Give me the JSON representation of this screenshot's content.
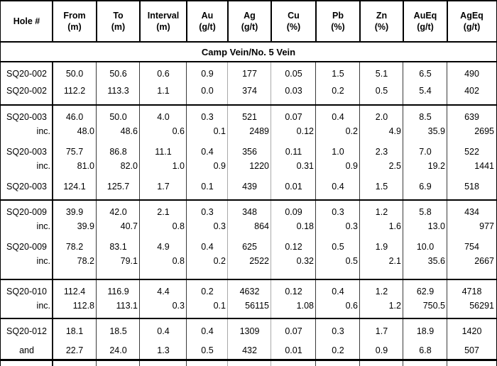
{
  "table": {
    "columns": [
      {
        "label": "Hole #",
        "unit": ""
      },
      {
        "label": "From",
        "unit": "(m)"
      },
      {
        "label": "To",
        "unit": "(m)"
      },
      {
        "label": "Interval",
        "unit": "(m)"
      },
      {
        "label": "Au",
        "unit": "(g/t)"
      },
      {
        "label": "Ag",
        "unit": "(g/t)"
      },
      {
        "label": "Cu",
        "unit": "(%)"
      },
      {
        "label": "Pb",
        "unit": "(%)"
      },
      {
        "label": "Zn",
        "unit": "(%)"
      },
      {
        "label": "AuEq",
        "unit": "(g/t)"
      },
      {
        "label": "AgEq",
        "unit": "(g/t)"
      }
    ],
    "section_title": "Camp Vein/No. 5 Vein",
    "groups": [
      {
        "entries": [
          [
            {
              "kind": "main",
              "cells": [
                "SQ20-002",
                "50.0",
                "50.6",
                "0.6",
                "0.9",
                "177",
                "0.05",
                "1.5",
                "5.1",
                "6.5",
                "490"
              ]
            }
          ],
          [
            {
              "kind": "main",
              "cells": [
                "SQ20-002",
                "112.2",
                "113.3",
                "1.1",
                "0.0",
                "374",
                "0.03",
                "0.2",
                "0.5",
                "5.4",
                "402"
              ]
            }
          ]
        ]
      },
      {
        "entries": [
          [
            {
              "kind": "main",
              "cells": [
                "SQ20-003",
                "46.0",
                "50.0",
                "4.0",
                "0.3",
                "521",
                "0.07",
                "0.4",
                "2.0",
                "8.5",
                "639"
              ]
            },
            {
              "kind": "inc",
              "cells": [
                "inc.",
                "48.0",
                "48.6",
                "0.6",
                "0.1",
                "2489",
                "0.12",
                "0.2",
                "4.9",
                "35.9",
                "2695"
              ]
            }
          ],
          [
            {
              "kind": "main",
              "cells": [
                "SQ20-003",
                "75.7",
                "86.8",
                "11.1",
                "0.4",
                "356",
                "0.11",
                "1.0",
                "2.3",
                "7.0",
                "522"
              ]
            },
            {
              "kind": "inc",
              "cells": [
                "inc.",
                "81.0",
                "82.0",
                "1.0",
                "0.9",
                "1220",
                "0.31",
                "0.9",
                "2.5",
                "19.2",
                "1441"
              ]
            }
          ],
          [
            {
              "kind": "main",
              "cells": [
                "SQ20-003",
                "124.1",
                "125.7",
                "1.7",
                "0.1",
                "439",
                "0.01",
                "0.4",
                "1.5",
                "6.9",
                "518"
              ]
            }
          ]
        ]
      },
      {
        "entries": [
          [
            {
              "kind": "main",
              "cells": [
                "SQ20-009",
                "39.9",
                "42.0",
                "2.1",
                "0.3",
                "348",
                "0.09",
                "0.3",
                "1.2",
                "5.8",
                "434"
              ]
            },
            {
              "kind": "inc",
              "cells": [
                "inc.",
                "39.9",
                "40.7",
                "0.8",
                "0.3",
                "864",
                "0.18",
                "0.3",
                "1.6",
                "13.0",
                "977"
              ]
            }
          ],
          [
            {
              "kind": "main",
              "cells": [
                "SQ20-009",
                "78.2",
                "83.1",
                "4.9",
                "0.4",
                "625",
                "0.12",
                "0.5",
                "1.9",
                "10.0",
                "754"
              ]
            },
            {
              "kind": "inc",
              "cells": [
                "inc.",
                "78.2",
                "79.1",
                "0.8",
                "0.2",
                "2522",
                "0.32",
                "0.5",
                "2.1",
                "35.6",
                "2667"
              ]
            }
          ]
        ]
      },
      {
        "entries": [
          [
            {
              "kind": "main",
              "cells": [
                "SQ20-010",
                "112.4",
                "116.9",
                "4.4",
                "0.2",
                "4632",
                "0.12",
                "0.4",
                "1.2",
                "62.9",
                "4718"
              ]
            },
            {
              "kind": "inc",
              "cells": [
                "inc.",
                "112.8",
                "113.1",
                "0.3",
                "0.1",
                "56115",
                "1.08",
                "0.6",
                "1.2",
                "750.5",
                "56291"
              ]
            }
          ]
        ]
      },
      {
        "entries": [
          [
            {
              "kind": "main",
              "cells": [
                "SQ20-012",
                "18.1",
                "18.5",
                "0.4",
                "0.4",
                "1309",
                "0.07",
                "0.3",
                "1.7",
                "18.9",
                "1420"
              ]
            }
          ],
          [
            {
              "kind": "and",
              "cells": [
                "and",
                "22.7",
                "24.0",
                "1.3",
                "0.5",
                "432",
                "0.01",
                "0.2",
                "0.9",
                "6.8",
                "507"
              ]
            }
          ]
        ]
      }
    ]
  }
}
